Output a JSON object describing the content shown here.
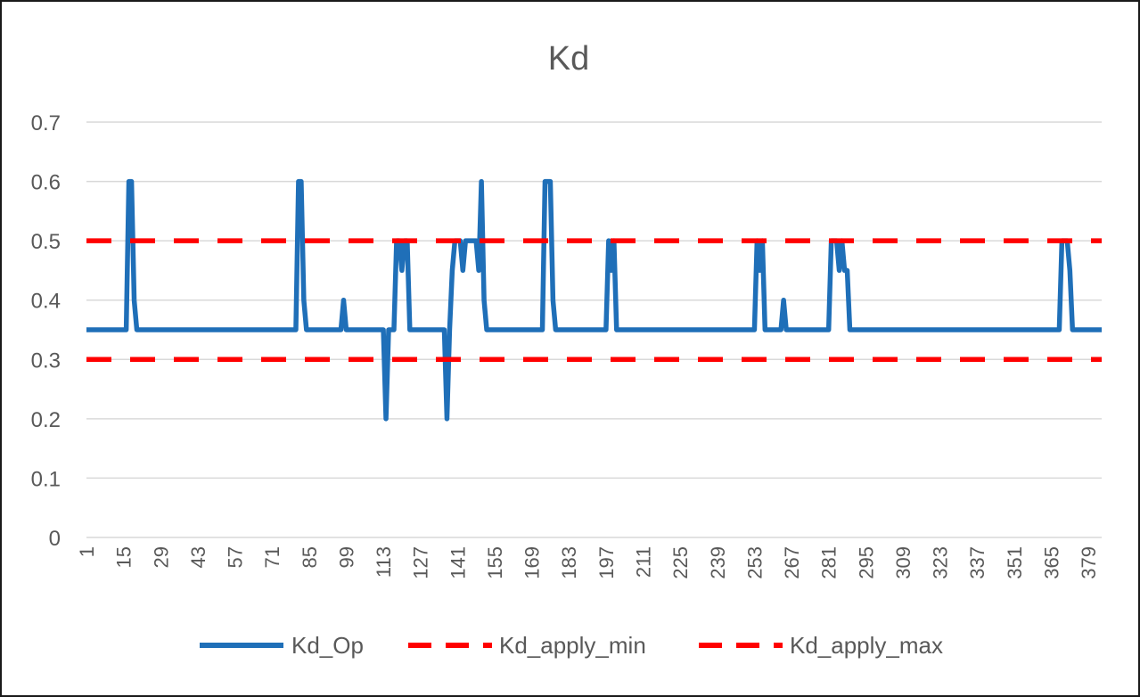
{
  "chart_data": {
    "type": "line",
    "title": "Kd",
    "xlabel": "",
    "ylabel": "",
    "ylim": [
      0,
      0.7
    ],
    "yticks": [
      "0",
      "0.1",
      "0.2",
      "0.3",
      "0.4",
      "0.5",
      "0.6",
      "0.7"
    ],
    "x_range": [
      1,
      384
    ],
    "x_tick_labels": [
      "1",
      "15",
      "29",
      "43",
      "57",
      "71",
      "85",
      "99",
      "113",
      "127",
      "141",
      "155",
      "169",
      "183",
      "197",
      "211",
      "225",
      "239",
      "253",
      "267",
      "281",
      "295",
      "309",
      "323",
      "337",
      "351",
      "365",
      "379"
    ],
    "grid": true,
    "legend_position": "bottom",
    "series": [
      {
        "name": "Kd_Op",
        "color": "#1f6fb8",
        "style": "solid",
        "points": [
          [
            1,
            0.35
          ],
          [
            16,
            0.35
          ],
          [
            17,
            0.6
          ],
          [
            18,
            0.6
          ],
          [
            19,
            0.4
          ],
          [
            20,
            0.35
          ],
          [
            80,
            0.35
          ],
          [
            81,
            0.6
          ],
          [
            82,
            0.6
          ],
          [
            83,
            0.4
          ],
          [
            84,
            0.35
          ],
          [
            97,
            0.35
          ],
          [
            98,
            0.4
          ],
          [
            99,
            0.35
          ],
          [
            112,
            0.35
          ],
          [
            113,
            0.35
          ],
          [
            114,
            0.2
          ],
          [
            115,
            0.35
          ],
          [
            117,
            0.35
          ],
          [
            118,
            0.5
          ],
          [
            119,
            0.5
          ],
          [
            120,
            0.45
          ],
          [
            121,
            0.5
          ],
          [
            122,
            0.5
          ],
          [
            123,
            0.35
          ],
          [
            135,
            0.35
          ],
          [
            136,
            0.35
          ],
          [
            137,
            0.2
          ],
          [
            138,
            0.35
          ],
          [
            139,
            0.45
          ],
          [
            140,
            0.5
          ],
          [
            142,
            0.5
          ],
          [
            143,
            0.45
          ],
          [
            144,
            0.5
          ],
          [
            148,
            0.5
          ],
          [
            149,
            0.45
          ],
          [
            150,
            0.6
          ],
          [
            151,
            0.4
          ],
          [
            152,
            0.35
          ],
          [
            173,
            0.35
          ],
          [
            174,
            0.6
          ],
          [
            176,
            0.6
          ],
          [
            177,
            0.4
          ],
          [
            178,
            0.35
          ],
          [
            197,
            0.35
          ],
          [
            198,
            0.5
          ],
          [
            199,
            0.45
          ],
          [
            200,
            0.5
          ],
          [
            201,
            0.35
          ],
          [
            253,
            0.35
          ],
          [
            254,
            0.5
          ],
          [
            255,
            0.45
          ],
          [
            256,
            0.5
          ],
          [
            257,
            0.35
          ],
          [
            263,
            0.35
          ],
          [
            264,
            0.4
          ],
          [
            265,
            0.35
          ],
          [
            281,
            0.35
          ],
          [
            282,
            0.5
          ],
          [
            284,
            0.5
          ],
          [
            285,
            0.45
          ],
          [
            286,
            0.5
          ],
          [
            287,
            0.45
          ],
          [
            288,
            0.45
          ],
          [
            289,
            0.35
          ],
          [
            368,
            0.35
          ],
          [
            369,
            0.5
          ],
          [
            371,
            0.5
          ],
          [
            372,
            0.45
          ],
          [
            373,
            0.35
          ],
          [
            384,
            0.35
          ]
        ]
      },
      {
        "name": "Kd_apply_min",
        "color": "#ff0000",
        "style": "dashed",
        "points": [
          [
            1,
            0.5
          ],
          [
            384,
            0.5
          ]
        ]
      },
      {
        "name": "Kd_apply_max",
        "color": "#ff0000",
        "style": "dashed",
        "points": [
          [
            1,
            0.3
          ],
          [
            384,
            0.3
          ]
        ]
      }
    ]
  }
}
